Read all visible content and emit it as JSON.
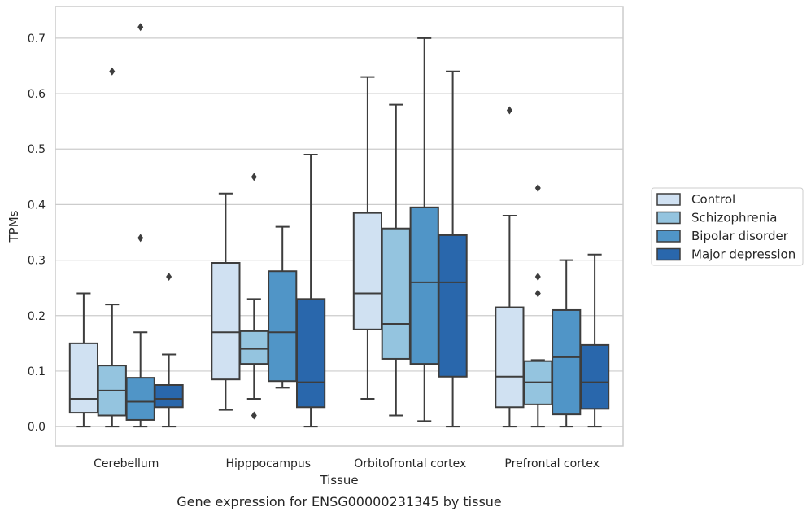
{
  "chart_data": {
    "type": "box",
    "title": "",
    "caption": "Gene expression for ENSG00000231345 by tissue",
    "xlabel": "Tissue",
    "ylabel": "TPMs",
    "ylim": [
      -0.035,
      0.757
    ],
    "yticks": [
      "0.0",
      "0.1",
      "0.2",
      "0.3",
      "0.4",
      "0.5",
      "0.6",
      "0.7"
    ],
    "grid": "horizontal",
    "legend_position": "right",
    "categories": [
      "Cerebellum",
      "Hipppocampus",
      "Orbitofrontal cortex",
      "Prefrontal cortex"
    ],
    "series": [
      {
        "name": "Control",
        "color": "#d0e1f2",
        "boxes": [
          {
            "whisker_low": 0.0,
            "q1": 0.025,
            "median": 0.05,
            "q3": 0.15,
            "whisker_high": 0.24,
            "outliers": []
          },
          {
            "whisker_low": 0.03,
            "q1": 0.085,
            "median": 0.17,
            "q3": 0.295,
            "whisker_high": 0.42,
            "outliers": []
          },
          {
            "whisker_low": 0.05,
            "q1": 0.175,
            "median": 0.24,
            "q3": 0.385,
            "whisker_high": 0.63,
            "outliers": []
          },
          {
            "whisker_low": 0.0,
            "q1": 0.035,
            "median": 0.09,
            "q3": 0.215,
            "whisker_high": 0.38,
            "outliers": [
              0.57
            ]
          }
        ]
      },
      {
        "name": "Schizophrenia",
        "color": "#94c4df",
        "boxes": [
          {
            "whisker_low": 0.0,
            "q1": 0.02,
            "median": 0.065,
            "q3": 0.11,
            "whisker_high": 0.22,
            "outliers": [
              0.64
            ]
          },
          {
            "whisker_low": 0.05,
            "q1": 0.113,
            "median": 0.14,
            "q3": 0.172,
            "whisker_high": 0.23,
            "outliers": [
              0.45,
              0.02
            ]
          },
          {
            "whisker_low": 0.02,
            "q1": 0.122,
            "median": 0.185,
            "q3": 0.357,
            "whisker_high": 0.58,
            "outliers": []
          },
          {
            "whisker_low": 0.0,
            "q1": 0.04,
            "median": 0.08,
            "q3": 0.118,
            "whisker_high": 0.12,
            "outliers": [
              0.43,
              0.27,
              0.24
            ]
          }
        ]
      },
      {
        "name": "Bipolar disorder",
        "color": "#5095c7",
        "boxes": [
          {
            "whisker_low": 0.0,
            "q1": 0.012,
            "median": 0.045,
            "q3": 0.088,
            "whisker_high": 0.17,
            "outliers": [
              0.72,
              0.34
            ]
          },
          {
            "whisker_low": 0.07,
            "q1": 0.082,
            "median": 0.17,
            "q3": 0.28,
            "whisker_high": 0.36,
            "outliers": []
          },
          {
            "whisker_low": 0.01,
            "q1": 0.113,
            "median": 0.26,
            "q3": 0.395,
            "whisker_high": 0.7,
            "outliers": []
          },
          {
            "whisker_low": 0.0,
            "q1": 0.022,
            "median": 0.125,
            "q3": 0.21,
            "whisker_high": 0.3,
            "outliers": []
          }
        ]
      },
      {
        "name": "Major depression",
        "color": "#2967ac",
        "boxes": [
          {
            "whisker_low": 0.0,
            "q1": 0.035,
            "median": 0.05,
            "q3": 0.075,
            "whisker_high": 0.13,
            "outliers": [
              0.27
            ]
          },
          {
            "whisker_low": 0.0,
            "q1": 0.035,
            "median": 0.08,
            "q3": 0.23,
            "whisker_high": 0.49,
            "outliers": []
          },
          {
            "whisker_low": 0.0,
            "q1": 0.09,
            "median": 0.26,
            "q3": 0.345,
            "whisker_high": 0.64,
            "outliers": []
          },
          {
            "whisker_low": 0.0,
            "q1": 0.032,
            "median": 0.08,
            "q3": 0.147,
            "whisker_high": 0.31,
            "outliers": []
          }
        ]
      }
    ],
    "colors": {
      "grid": "#cccccc",
      "frame": "#cccccc",
      "box_edge": "#3d3d3d",
      "text": "#262626"
    }
  }
}
